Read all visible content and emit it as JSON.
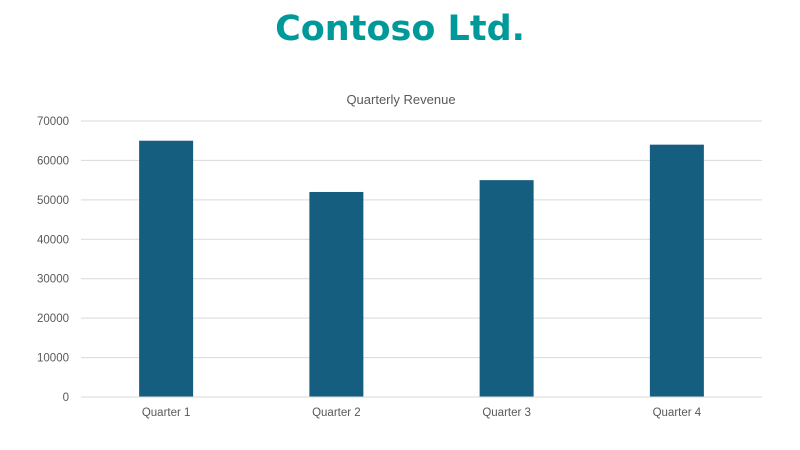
{
  "slide": {
    "title": "Contoso Ltd.",
    "title_color": "#009999"
  },
  "chart_data": {
    "type": "bar",
    "title": "Quarterly Revenue",
    "categories": [
      "Quarter 1",
      "Quarter 2",
      "Quarter 3",
      "Quarter 4"
    ],
    "series": [
      {
        "values": [
          65000,
          52000,
          55000,
          64000
        ]
      }
    ],
    "ylim": [
      0,
      70000
    ],
    "yticks": [
      "0",
      "10000",
      "20000",
      "30000",
      "40000",
      "50000",
      "60000",
      "70000"
    ],
    "xlabel": "",
    "ylabel": "",
    "grid": true,
    "legend": "none",
    "bar_color": "#165e80"
  }
}
